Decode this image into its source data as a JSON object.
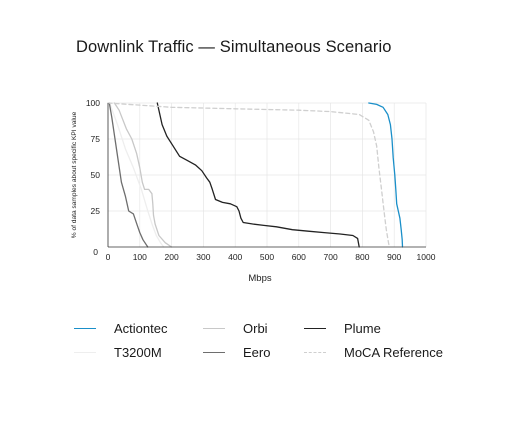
{
  "chart_data": {
    "type": "line",
    "title": "Downlink Traffic — Simultaneous Scenario",
    "xlabel": "Mbps",
    "ylabel": "% of data samples about specific KPI value",
    "xlim": [
      0,
      1000
    ],
    "ylim": [
      0,
      100
    ],
    "x_ticks": [
      "0",
      "100",
      "200",
      "300",
      "400",
      "500",
      "600",
      "700",
      "800",
      "900",
      "1000"
    ],
    "y_ticks": [
      "0",
      "25",
      "50",
      "75",
      "100"
    ],
    "grid": true,
    "legend_position": "bottom",
    "series": [
      {
        "name": "Actiontec",
        "color": "#1a8fc9",
        "dashed": false,
        "points": [
          [
            820,
            100
          ],
          [
            845,
            99
          ],
          [
            865,
            97
          ],
          [
            880,
            92
          ],
          [
            888,
            85
          ],
          [
            893,
            75
          ],
          [
            897,
            62
          ],
          [
            902,
            50
          ],
          [
            905,
            40
          ],
          [
            908,
            30
          ],
          [
            913,
            25
          ],
          [
            918,
            20
          ],
          [
            922,
            12
          ],
          [
            925,
            5
          ],
          [
            926,
            0
          ]
        ]
      },
      {
        "name": "T3200M",
        "color": "#eeeeee",
        "dashed": false,
        "points": [
          [
            5,
            100
          ],
          [
            30,
            85
          ],
          [
            55,
            68
          ],
          [
            80,
            55
          ],
          [
            105,
            40
          ],
          [
            125,
            25
          ],
          [
            140,
            15
          ],
          [
            152,
            8
          ],
          [
            165,
            3
          ],
          [
            175,
            0
          ]
        ]
      },
      {
        "name": "Orbi",
        "color": "#c8c8c8",
        "dashed": false,
        "points": [
          [
            20,
            100
          ],
          [
            35,
            95
          ],
          [
            58,
            82
          ],
          [
            75,
            75
          ],
          [
            90,
            65
          ],
          [
            100,
            55
          ],
          [
            108,
            45
          ],
          [
            115,
            40
          ],
          [
            128,
            40
          ],
          [
            138,
            37
          ],
          [
            141,
            30
          ],
          [
            143,
            22
          ],
          [
            148,
            16
          ],
          [
            160,
            8
          ],
          [
            180,
            3
          ],
          [
            200,
            0
          ]
        ]
      },
      {
        "name": "Eero",
        "color": "#6e6e6e",
        "dashed": false,
        "points": [
          [
            4,
            100
          ],
          [
            12,
            90
          ],
          [
            22,
            75
          ],
          [
            32,
            60
          ],
          [
            42,
            45
          ],
          [
            55,
            35
          ],
          [
            65,
            25
          ],
          [
            80,
            23
          ],
          [
            92,
            15
          ],
          [
            100,
            10
          ],
          [
            110,
            5
          ],
          [
            125,
            0
          ]
        ]
      },
      {
        "name": "Plume",
        "color": "#222222",
        "dashed": false,
        "points": [
          [
            155,
            100
          ],
          [
            170,
            85
          ],
          [
            185,
            77
          ],
          [
            205,
            70
          ],
          [
            225,
            63
          ],
          [
            250,
            60
          ],
          [
            275,
            57
          ],
          [
            295,
            53
          ],
          [
            310,
            48
          ],
          [
            320,
            45
          ],
          [
            328,
            40
          ],
          [
            338,
            33
          ],
          [
            360,
            31
          ],
          [
            385,
            30
          ],
          [
            405,
            28
          ],
          [
            412,
            25
          ],
          [
            418,
            20
          ],
          [
            425,
            17
          ],
          [
            455,
            16
          ],
          [
            490,
            15
          ],
          [
            530,
            14
          ],
          [
            580,
            12
          ],
          [
            630,
            11
          ],
          [
            680,
            10
          ],
          [
            730,
            9
          ],
          [
            770,
            8
          ],
          [
            785,
            6
          ],
          [
            790,
            0
          ]
        ]
      },
      {
        "name": "MoCA Reference",
        "color": "#cfcfcf",
        "dashed": true,
        "points": [
          [
            0,
            100
          ],
          [
            200,
            97
          ],
          [
            400,
            96
          ],
          [
            600,
            95
          ],
          [
            700,
            94
          ],
          [
            790,
            92
          ],
          [
            820,
            88
          ],
          [
            835,
            80
          ],
          [
            845,
            70
          ],
          [
            852,
            55
          ],
          [
            860,
            40
          ],
          [
            868,
            25
          ],
          [
            875,
            12
          ],
          [
            882,
            3
          ],
          [
            885,
            0
          ]
        ]
      }
    ]
  }
}
